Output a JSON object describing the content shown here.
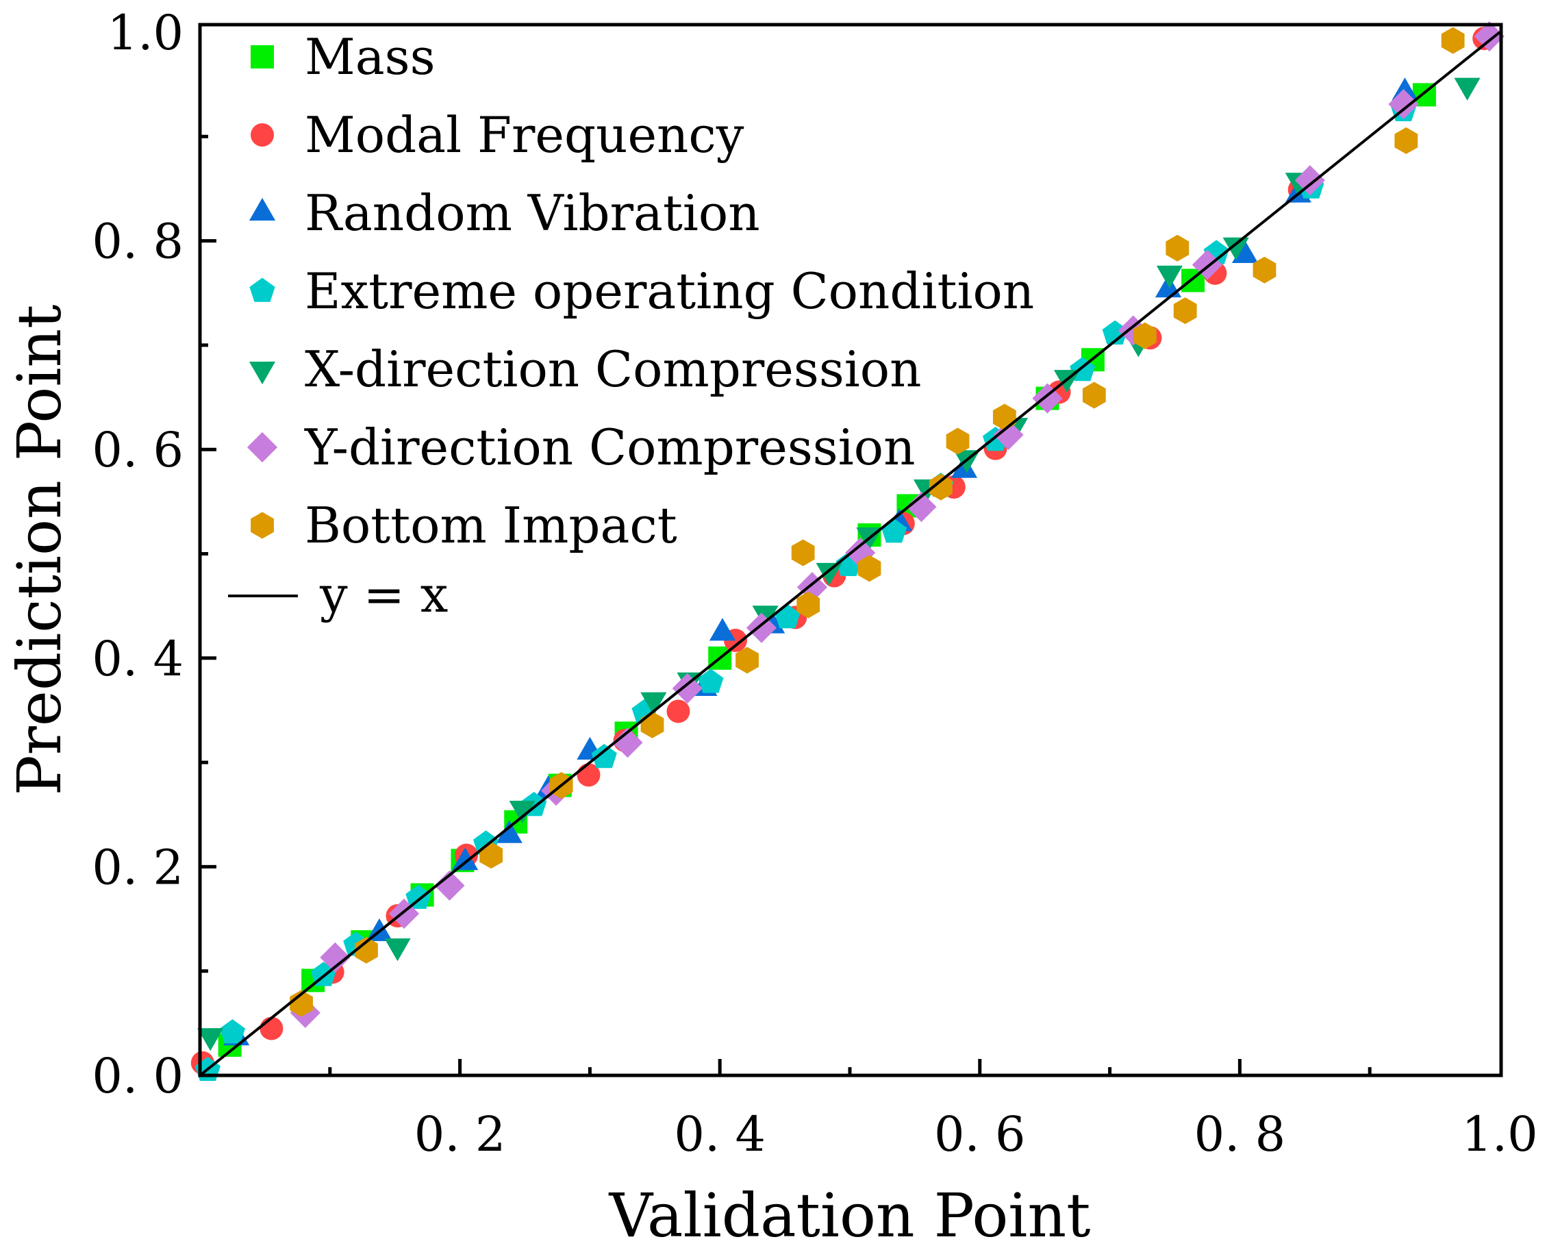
{
  "chart_data": {
    "type": "scatter",
    "title": "",
    "xlabel": "Validation Point",
    "ylabel": "Prediction Point",
    "xlim": [
      0,
      1.0
    ],
    "ylim": [
      0,
      1.0
    ],
    "grid": false,
    "legend_placement": "top-left",
    "x_ticks": [
      {
        "value": 0.2,
        "label": "0. 2"
      },
      {
        "value": 0.4,
        "label": "0. 4"
      },
      {
        "value": 0.6,
        "label": "0. 6"
      },
      {
        "value": 0.8,
        "label": "0. 8"
      },
      {
        "value": 1.0,
        "label": "1.0"
      }
    ],
    "y_ticks": [
      {
        "value": 0.0,
        "label": "0. 0"
      },
      {
        "value": 0.2,
        "label": "0. 2"
      },
      {
        "value": 0.4,
        "label": "0. 4"
      },
      {
        "value": 0.6,
        "label": "0. 6"
      },
      {
        "value": 0.8,
        "label": "0. 8"
      },
      {
        "value": 1.0,
        "label": "1.0"
      }
    ],
    "reference_line": {
      "name": "y = x",
      "color": "#000000"
    },
    "series": [
      {
        "name": "Mass",
        "marker": "square",
        "color": "#00ee00",
        "points": [
          [
            0.023,
            0.029
          ],
          [
            0.087,
            0.091
          ],
          [
            0.125,
            0.128
          ],
          [
            0.171,
            0.173
          ],
          [
            0.202,
            0.206
          ],
          [
            0.243,
            0.243
          ],
          [
            0.277,
            0.278
          ],
          [
            0.328,
            0.328
          ],
          [
            0.4,
            0.4
          ],
          [
            0.515,
            0.518
          ],
          [
            0.545,
            0.546
          ],
          [
            0.652,
            0.649
          ],
          [
            0.687,
            0.686
          ],
          [
            0.764,
            0.762
          ],
          [
            0.942,
            0.94
          ]
        ]
      },
      {
        "name": "Modal Frequency",
        "marker": "circle",
        "color": "#ff4444",
        "points": [
          [
            0.002,
            0.012
          ],
          [
            0.055,
            0.045
          ],
          [
            0.102,
            0.099
          ],
          [
            0.152,
            0.153
          ],
          [
            0.205,
            0.211
          ],
          [
            0.299,
            0.288
          ],
          [
            0.327,
            0.321
          ],
          [
            0.368,
            0.349
          ],
          [
            0.412,
            0.417
          ],
          [
            0.458,
            0.439
          ],
          [
            0.488,
            0.479
          ],
          [
            0.541,
            0.529
          ],
          [
            0.58,
            0.564
          ],
          [
            0.612,
            0.601
          ],
          [
            0.661,
            0.655
          ],
          [
            0.731,
            0.707
          ],
          [
            0.781,
            0.769
          ],
          [
            0.846,
            0.849
          ],
          [
            0.988,
            0.994
          ]
        ]
      },
      {
        "name": "Random Vibration",
        "marker": "triangle-up",
        "color": "#0a6ed8",
        "points": [
          [
            0.028,
            0.036
          ],
          [
            0.138,
            0.136
          ],
          [
            0.204,
            0.204
          ],
          [
            0.238,
            0.23
          ],
          [
            0.268,
            0.273
          ],
          [
            0.3,
            0.31
          ],
          [
            0.388,
            0.371
          ],
          [
            0.402,
            0.424
          ],
          [
            0.44,
            0.431
          ],
          [
            0.538,
            0.529
          ],
          [
            0.588,
            0.58
          ],
          [
            0.745,
            0.753
          ],
          [
            0.804,
            0.786
          ],
          [
            0.845,
            0.844
          ],
          [
            0.927,
            0.942
          ]
        ]
      },
      {
        "name": "Extreme operating Condition",
        "marker": "pentagon",
        "color": "#00cccc",
        "points": [
          [
            0.006,
            0.005
          ],
          [
            0.025,
            0.041
          ],
          [
            0.095,
            0.096
          ],
          [
            0.12,
            0.125
          ],
          [
            0.168,
            0.17
          ],
          [
            0.22,
            0.222
          ],
          [
            0.257,
            0.259
          ],
          [
            0.311,
            0.305
          ],
          [
            0.342,
            0.348
          ],
          [
            0.393,
            0.377
          ],
          [
            0.452,
            0.439
          ],
          [
            0.499,
            0.489
          ],
          [
            0.534,
            0.521
          ],
          [
            0.57,
            0.565
          ],
          [
            0.612,
            0.609
          ],
          [
            0.679,
            0.676
          ],
          [
            0.704,
            0.711
          ],
          [
            0.782,
            0.788
          ],
          [
            0.855,
            0.851
          ],
          [
            0.926,
            0.925
          ]
        ]
      },
      {
        "name": "X-direction Compression",
        "marker": "triangle-down",
        "color": "#00a86b",
        "points": [
          [
            0.008,
            0.038
          ],
          [
            0.152,
            0.124
          ],
          [
            0.248,
            0.256
          ],
          [
            0.349,
            0.36
          ],
          [
            0.377,
            0.379
          ],
          [
            0.435,
            0.443
          ],
          [
            0.484,
            0.484
          ],
          [
            0.515,
            0.518
          ],
          [
            0.559,
            0.564
          ],
          [
            0.59,
            0.592
          ],
          [
            0.627,
            0.623
          ],
          [
            0.667,
            0.669
          ],
          [
            0.722,
            0.703
          ],
          [
            0.746,
            0.769
          ],
          [
            0.797,
            0.796
          ],
          [
            0.845,
            0.858
          ],
          [
            0.975,
            0.949
          ]
        ]
      },
      {
        "name": "Y-direction Compression",
        "marker": "diamond",
        "color": "#c77ddd",
        "points": [
          [
            0.081,
            0.06
          ],
          [
            0.104,
            0.113
          ],
          [
            0.157,
            0.155
          ],
          [
            0.192,
            0.182
          ],
          [
            0.274,
            0.273
          ],
          [
            0.329,
            0.319
          ],
          [
            0.375,
            0.371
          ],
          [
            0.432,
            0.429
          ],
          [
            0.471,
            0.468
          ],
          [
            0.508,
            0.501
          ],
          [
            0.555,
            0.545
          ],
          [
            0.622,
            0.614
          ],
          [
            0.652,
            0.649
          ],
          [
            0.718,
            0.714
          ],
          [
            0.775,
            0.777
          ],
          [
            0.854,
            0.858
          ],
          [
            0.926,
            0.931
          ],
          [
            0.992,
            0.996
          ]
        ]
      },
      {
        "name": "Bottom Impact",
        "marker": "hexagon",
        "color": "#dd9900",
        "points": [
          [
            0.078,
            0.069
          ],
          [
            0.128,
            0.12
          ],
          [
            0.224,
            0.211
          ],
          [
            0.278,
            0.278
          ],
          [
            0.348,
            0.336
          ],
          [
            0.421,
            0.398
          ],
          [
            0.464,
            0.501
          ],
          [
            0.468,
            0.451
          ],
          [
            0.515,
            0.486
          ],
          [
            0.57,
            0.564
          ],
          [
            0.583,
            0.608
          ],
          [
            0.619,
            0.631
          ],
          [
            0.688,
            0.652
          ],
          [
            0.727,
            0.709
          ],
          [
            0.752,
            0.793
          ],
          [
            0.758,
            0.733
          ],
          [
            0.819,
            0.772
          ],
          [
            0.928,
            0.896
          ],
          [
            0.964,
            0.992
          ]
        ]
      }
    ]
  }
}
